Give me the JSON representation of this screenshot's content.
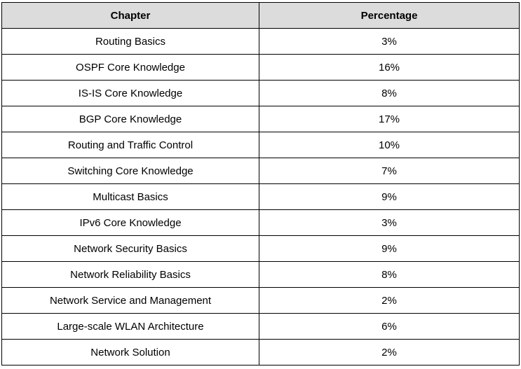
{
  "table": {
    "headers": [
      "Chapter",
      "Percentage"
    ],
    "rows": [
      {
        "chapter": "Routing Basics",
        "percentage": "3%"
      },
      {
        "chapter": "OSPF Core Knowledge",
        "percentage": "16%"
      },
      {
        "chapter": "IS-IS Core Knowledge",
        "percentage": "8%"
      },
      {
        "chapter": "BGP Core Knowledge",
        "percentage": "17%"
      },
      {
        "chapter": "Routing and Traffic Control",
        "percentage": "10%"
      },
      {
        "chapter": "Switching Core Knowledge",
        "percentage": "7%"
      },
      {
        "chapter": "Multicast Basics",
        "percentage": "9%"
      },
      {
        "chapter": "IPv6 Core Knowledge",
        "percentage": "3%"
      },
      {
        "chapter": "Network Security Basics",
        "percentage": "9%"
      },
      {
        "chapter": "Network Reliability Basics",
        "percentage": "8%"
      },
      {
        "chapter": "Network Service and Management",
        "percentage": "2%"
      },
      {
        "chapter": "Large-scale WLAN Architecture",
        "percentage": "6%"
      },
      {
        "chapter": "Network Solution",
        "percentage": "2%"
      }
    ]
  },
  "colors": {
    "header_background": "#dcdcdc",
    "border": "#000000",
    "text": "#000000"
  }
}
